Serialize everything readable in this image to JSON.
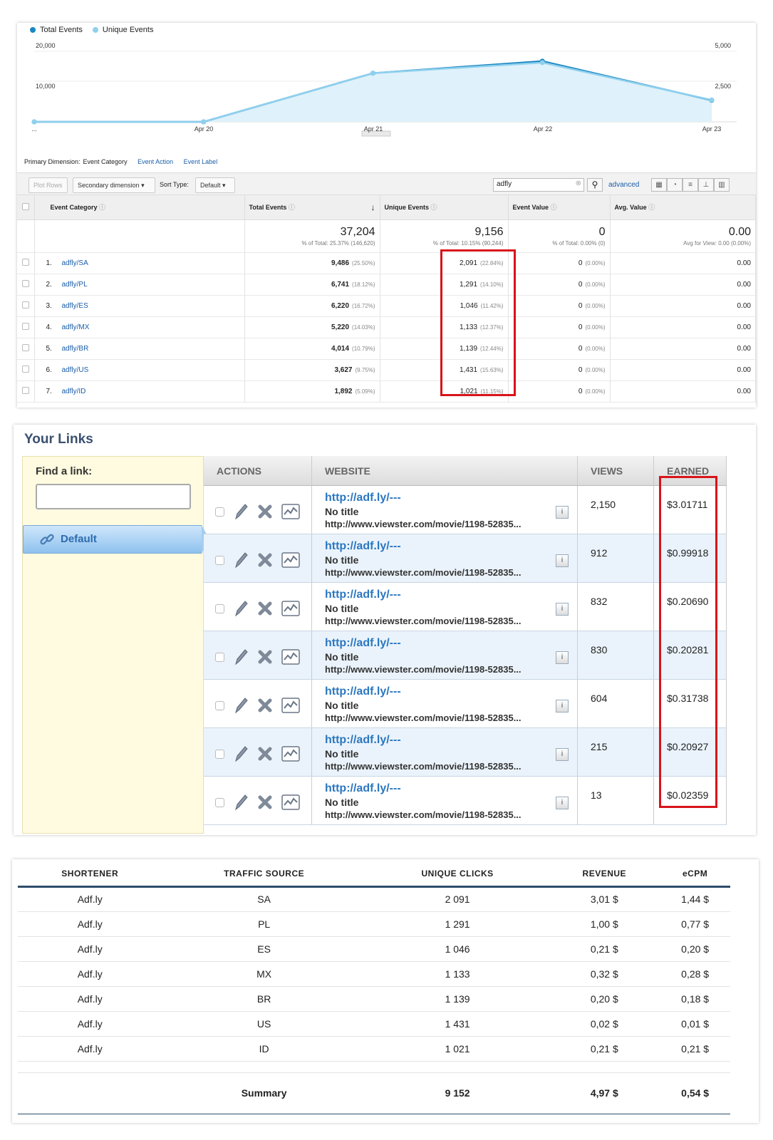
{
  "analytics": {
    "legend": [
      {
        "label": "Total Events",
        "color": "#1b87c0"
      },
      {
        "label": "Unique Events",
        "color": "#8fd0ee"
      }
    ],
    "y_left_ticks": [
      "20,000",
      "10,000"
    ],
    "y_right_ticks": [
      "5,000",
      "2,500"
    ],
    "x_ticks": [
      "...",
      "Apr 20",
      "Apr 21",
      "Apr 22",
      "Apr 23"
    ],
    "chart_data": {
      "type": "area",
      "x": [
        "...",
        "Apr 20",
        "Apr 21",
        "Apr 22",
        "Apr 23"
      ],
      "series": [
        {
          "name": "Total Events",
          "values": [
            0,
            0,
            13800,
            17200,
            6100
          ],
          "axis": "left"
        },
        {
          "name": "Unique Events",
          "values": [
            0,
            0,
            3450,
            4200,
            1550
          ],
          "axis": "right"
        }
      ],
      "ylim_left": [
        0,
        20000
      ],
      "ylim_right": [
        0,
        5000
      ]
    },
    "dimension_label": "Primary Dimension:",
    "dimension_active": "Event Category",
    "dimension_links": [
      "Event Action",
      "Event Label"
    ],
    "toolbar": {
      "plot_rows": "Plot Rows",
      "secondary": "Secondary dimension",
      "sort_label": "Sort Type:",
      "sort_value": "Default",
      "search_value": "adfly",
      "advanced": "advanced"
    },
    "columns": [
      "Event Category",
      "Total Events",
      "Unique Events",
      "Event Value",
      "Avg. Value"
    ],
    "totals": {
      "total_events": "37,204",
      "total_events_sub": "% of Total: 25.37% (146,620)",
      "unique_events": "9,156",
      "unique_events_sub": "% of Total: 10.15% (90,244)",
      "event_value": "0",
      "event_value_sub": "% of Total: 0.00% (0)",
      "avg_value": "0.00",
      "avg_value_sub": "Avg for View: 0.00 (0.00%)"
    },
    "rows": [
      {
        "n": "1.",
        "cat": "adfly/SA",
        "te": "9,486",
        "tep": "(25.50%)",
        "ue": "2,091",
        "uep": "(22.84%)",
        "ev": "0",
        "evp": "(0.00%)",
        "av": "0.00"
      },
      {
        "n": "2.",
        "cat": "adfly/PL",
        "te": "6,741",
        "tep": "(18.12%)",
        "ue": "1,291",
        "uep": "(14.10%)",
        "ev": "0",
        "evp": "(0.00%)",
        "av": "0.00"
      },
      {
        "n": "3.",
        "cat": "adfly/ES",
        "te": "6,220",
        "tep": "(16.72%)",
        "ue": "1,046",
        "uep": "(11.42%)",
        "ev": "0",
        "evp": "(0.00%)",
        "av": "0.00"
      },
      {
        "n": "4.",
        "cat": "adfly/MX",
        "te": "5,220",
        "tep": "(14.03%)",
        "ue": "1,133",
        "uep": "(12.37%)",
        "ev": "0",
        "evp": "(0.00%)",
        "av": "0.00"
      },
      {
        "n": "5.",
        "cat": "adfly/BR",
        "te": "4,014",
        "tep": "(10.79%)",
        "ue": "1,139",
        "uep": "(12.44%)",
        "ev": "0",
        "evp": "(0.00%)",
        "av": "0.00"
      },
      {
        "n": "6.",
        "cat": "adfly/US",
        "te": "3,627",
        "tep": "(9.75%)",
        "ue": "1,431",
        "uep": "(15.63%)",
        "ev": "0",
        "evp": "(0.00%)",
        "av": "0.00"
      },
      {
        "n": "7.",
        "cat": "adfly/ID",
        "te": "1,892",
        "tep": "(5.09%)",
        "ue": "1,021",
        "uep": "(11.15%)",
        "ev": "0",
        "evp": "(0.00%)",
        "av": "0.00"
      }
    ]
  },
  "links": {
    "title": "Your Links",
    "find_label": "Find a link:",
    "find_value": "",
    "default_tab": "Default",
    "columns": [
      "ACTIONS",
      "WEBSITE",
      "VIEWS",
      "EARNED"
    ],
    "rows": [
      {
        "short": "http://adf.ly/---",
        "title": "No title",
        "long": "http://www.viewster.com/movie/1198-52835...",
        "info": "i",
        "views": "2,150",
        "earned": "$3.01711"
      },
      {
        "short": "http://adf.ly/---",
        "title": "No title",
        "long": "http://www.viewster.com/movie/1198-52835...",
        "info": "i",
        "views": "912",
        "earned": "$0.99918"
      },
      {
        "short": "http://adf.ly/---",
        "title": "No title",
        "long": "http://www.viewster.com/movie/1198-52835...",
        "info": "i",
        "views": "832",
        "earned": "$0.20690"
      },
      {
        "short": "http://adf.ly/---",
        "title": "No title",
        "long": "http://www.viewster.com/movie/1198-52835...",
        "info": "i",
        "views": "830",
        "earned": "$0.20281"
      },
      {
        "short": "http://adf.ly/---",
        "title": "No title",
        "long": "http://www.viewster.com/movie/1198-52835...",
        "info": "i",
        "views": "604",
        "earned": "$0.31738"
      },
      {
        "short": "http://adf.ly/---",
        "title": "No title",
        "long": "http://www.viewster.com/movie/1198-52835...",
        "info": "i",
        "views": "215",
        "earned": "$0.20927"
      },
      {
        "short": "http://adf.ly/---",
        "title": "No title",
        "long": "http://www.viewster.com/movie/1198-52835...",
        "info": "i",
        "views": "13",
        "earned": "$0.02359"
      }
    ]
  },
  "summary_table": {
    "columns": [
      "SHORTENER",
      "TRAFFIC SOURCE",
      "UNIQUE CLICKS",
      "REVENUE",
      "eCPM"
    ],
    "rows": [
      [
        "Adf.ly",
        "SA",
        "2 091",
        "3,01 $",
        "1,44 $"
      ],
      [
        "Adf.ly",
        "PL",
        "1 291",
        "1,00 $",
        "0,77 $"
      ],
      [
        "Adf.ly",
        "ES",
        "1 046",
        "0,21 $",
        "0,20 $"
      ],
      [
        "Adf.ly",
        "MX",
        "1 133",
        "0,32 $",
        "0,28 $"
      ],
      [
        "Adf.ly",
        "BR",
        "1 139",
        "0,20 $",
        "0,18 $"
      ],
      [
        "Adf.ly",
        "US",
        "1 431",
        "0,02 $",
        "0,01 $"
      ],
      [
        "Adf.ly",
        "ID",
        "1 021",
        "0,21 $",
        "0,21 $"
      ]
    ],
    "summary": [
      "",
      "Summary",
      "9 152",
      "4,97 $",
      "0,54 $"
    ]
  },
  "colors": {
    "highlight_box": "#d8141a",
    "link_blue": "#1a5ea8",
    "total_line": "#1b87c0",
    "unique_line": "#8fd0ee"
  }
}
